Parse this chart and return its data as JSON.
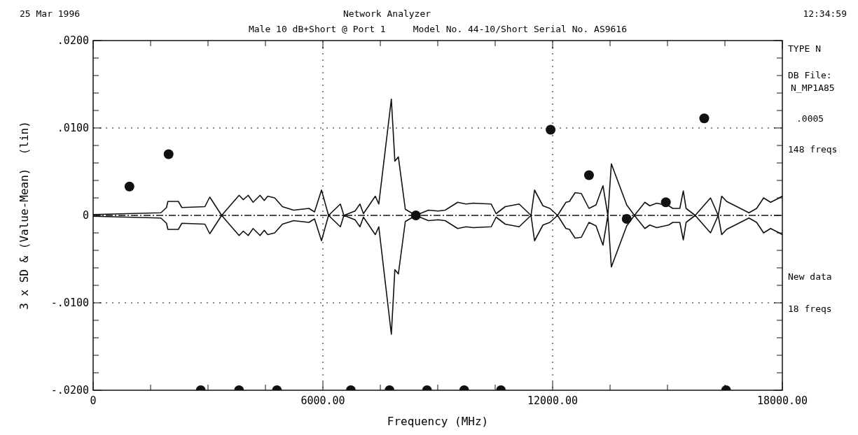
{
  "chart_data": {
    "type": "line",
    "title": "Network Analyzer",
    "subtitle": "Male 10 dB+Short @ Port 1     Model No. 44-10/Short Serial No. AS9616",
    "xlabel": "Frequency  (MHz)",
    "ylabel": "3 x SD & (Value-Mean)  (lin)",
    "annotations": [
      "25 Mar 1996",
      "12:34:59",
      "TYPE N",
      "DB File:",
      "N_MP1A85",
      ".0005",
      "148 freqs",
      "New data",
      "18 freqs"
    ],
    "xlim": [
      0,
      18000
    ],
    "ylim": [
      -0.02,
      0.02
    ],
    "xticks": [
      {
        "value": 0,
        "label": "0"
      },
      {
        "value": 1500,
        "label": null
      },
      {
        "value": 3000,
        "label": null
      },
      {
        "value": 4500,
        "label": null
      },
      {
        "value": 6000,
        "label": "6000.00"
      },
      {
        "value": 7500,
        "label": null
      },
      {
        "value": 9000,
        "label": null
      },
      {
        "value": 10500,
        "label": null
      },
      {
        "value": 12000,
        "label": "12000.00"
      },
      {
        "value": 13500,
        "label": null
      },
      {
        "value": 15000,
        "label": null
      },
      {
        "value": 16500,
        "label": null
      },
      {
        "value": 18000,
        "label": "18000.00"
      }
    ],
    "yticks": [
      {
        "value": -0.02,
        "label": "-.0200"
      },
      {
        "value": -0.018,
        "label": null
      },
      {
        "value": -0.016,
        "label": null
      },
      {
        "value": -0.014,
        "label": null
      },
      {
        "value": -0.012,
        "label": null
      },
      {
        "value": -0.01,
        "label": "-.0100"
      },
      {
        "value": -0.008,
        "label": null
      },
      {
        "value": -0.006,
        "label": null
      },
      {
        "value": -0.004,
        "label": null
      },
      {
        "value": -0.002,
        "label": null
      },
      {
        "value": 0,
        "label": "0"
      },
      {
        "value": 0.002,
        "label": null
      },
      {
        "value": 0.004,
        "label": null
      },
      {
        "value": 0.006,
        "label": null
      },
      {
        "value": 0.008,
        "label": null
      },
      {
        "value": 0.01,
        "label": ".0100"
      },
      {
        "value": 0.012,
        "label": null
      },
      {
        "value": 0.014,
        "label": null
      },
      {
        "value": 0.016,
        "label": null
      },
      {
        "value": 0.018,
        "label": null
      },
      {
        "value": 0.02,
        "label": ".0200"
      }
    ],
    "grid": true,
    "ref_lines": [
      {
        "axis": "y",
        "value": 0,
        "line_style": "dashed",
        "color": "#111111"
      }
    ],
    "series": [
      {
        "color": "#111111",
        "x": [
          0,
          1769,
          1915,
          1952,
          2225,
          2316,
          2918,
          3046,
          3356,
          3593,
          3812,
          3922,
          4049,
          4177,
          4359,
          4469,
          4560,
          4742,
          4943,
          5235,
          5636,
          5782,
          5964,
          6147,
          6457,
          6548,
          6840,
          6968,
          7059,
          7369,
          7460,
          7788,
          7880,
          7971,
          8153,
          8427,
          8755,
          9011,
          9193,
          9521,
          9740,
          9923,
          10397,
          10524,
          10762,
          11126,
          11436,
          11528,
          11747,
          11929,
          12130,
          12348,
          12440,
          12586,
          12750,
          12950,
          13133,
          13315,
          13443,
          13534,
          13935,
          14136,
          14410,
          14537,
          14720,
          15030,
          15139,
          15322,
          15413,
          15486,
          15723,
          16124,
          16325,
          16416,
          16544,
          17127,
          17328,
          17510,
          17693,
          17875,
          18000
        ],
        "values": [
          0.0001,
          0.0003,
          0.0009,
          0.0016,
          0.0016,
          0.0009,
          0.001,
          0.0021,
          0,
          0.0012,
          0.0023,
          0.0018,
          0.0023,
          0.0015,
          0.0023,
          0.0017,
          0.0022,
          0.002,
          0.001,
          0.0006,
          0.0008,
          0.0004,
          0.0029,
          0,
          0.0013,
          0,
          0.0005,
          0.0013,
          0.0002,
          0.0022,
          0.0013,
          0.0133,
          0.0062,
          0.0067,
          0.0007,
          0,
          0.0006,
          0.0005,
          0.0006,
          0.0015,
          0.0013,
          0.0014,
          0.0013,
          0.0002,
          0.001,
          0.0013,
          0,
          0.0029,
          0.0011,
          0.0008,
          0,
          0.0015,
          0.0016,
          0.0026,
          0.0025,
          0.0008,
          0.0012,
          0.0034,
          0,
          0.0059,
          0.0012,
          0,
          0.0015,
          0.0011,
          0.0014,
          0.0011,
          0.0008,
          0.0008,
          0.0028,
          0.0008,
          0,
          0.002,
          0,
          0.0022,
          0.0016,
          0.0003,
          0.0008,
          0.002,
          0.0015,
          0.0019,
          0.0022
        ]
      },
      {
        "color": "#111111",
        "x": [
          0,
          1769,
          1915,
          1952,
          2225,
          2316,
          2918,
          3046,
          3356,
          3593,
          3812,
          3922,
          4049,
          4177,
          4359,
          4469,
          4560,
          4742,
          4943,
          5235,
          5636,
          5782,
          5964,
          6147,
          6457,
          6548,
          6840,
          6968,
          7059,
          7369,
          7460,
          7788,
          7880,
          7971,
          8153,
          8427,
          8755,
          9011,
          9193,
          9521,
          9740,
          9923,
          10397,
          10524,
          10762,
          11126,
          11436,
          11528,
          11747,
          11929,
          12130,
          12348,
          12440,
          12586,
          12750,
          12950,
          13133,
          13315,
          13443,
          13534,
          13935,
          14136,
          14410,
          14537,
          14720,
          15030,
          15139,
          15322,
          15413,
          15486,
          15723,
          16124,
          16325,
          16416,
          16544,
          17127,
          17328,
          17510,
          17693,
          17875,
          18000
        ],
        "values": [
          -0.0001,
          -0.0003,
          -0.0009,
          -0.0016,
          -0.0016,
          -0.0009,
          -0.001,
          -0.0021,
          0,
          -0.0012,
          -0.0023,
          -0.0018,
          -0.0023,
          -0.0015,
          -0.0023,
          -0.0017,
          -0.0022,
          -0.002,
          -0.001,
          -0.0006,
          -0.0008,
          -0.0004,
          -0.0029,
          0,
          -0.0013,
          0,
          -0.0005,
          -0.0013,
          -0.0002,
          -0.0022,
          -0.0013,
          -0.0136,
          -0.0062,
          -0.0067,
          -0.0007,
          0,
          -0.0006,
          -0.0005,
          -0.0006,
          -0.0015,
          -0.0013,
          -0.0014,
          -0.0013,
          -0.0002,
          -0.001,
          -0.0013,
          0,
          -0.0029,
          -0.0011,
          -0.0008,
          0,
          -0.0015,
          -0.0016,
          -0.0026,
          -0.0025,
          -0.0008,
          -0.0012,
          -0.0034,
          0,
          -0.0059,
          -0.0012,
          0,
          -0.0015,
          -0.0011,
          -0.0014,
          -0.0011,
          -0.0008,
          -0.0008,
          -0.0028,
          -0.0008,
          0,
          -0.002,
          0,
          -0.0022,
          -0.0016,
          -0.0003,
          -0.0008,
          -0.002,
          -0.0015,
          -0.0019,
          -0.0022
        ]
      },
      {
        "type": "scatter",
        "marker": "circle",
        "color": "#111111",
        "x": [
          948,
          1970,
          8427,
          11947,
          12950,
          13935,
          14957,
          15960,
          2810,
          3810,
          4800,
          6730,
          7740,
          8720,
          9690,
          10650,
          16530
        ],
        "values": [
          0.0033,
          0.007,
          0,
          0.0098,
          0.0046,
          -0.0004,
          0.0015,
          0.0111,
          -0.02,
          -0.02,
          -0.02,
          -0.02,
          -0.02,
          -0.02,
          -0.02,
          -0.02,
          -0.02
        ]
      }
    ]
  }
}
